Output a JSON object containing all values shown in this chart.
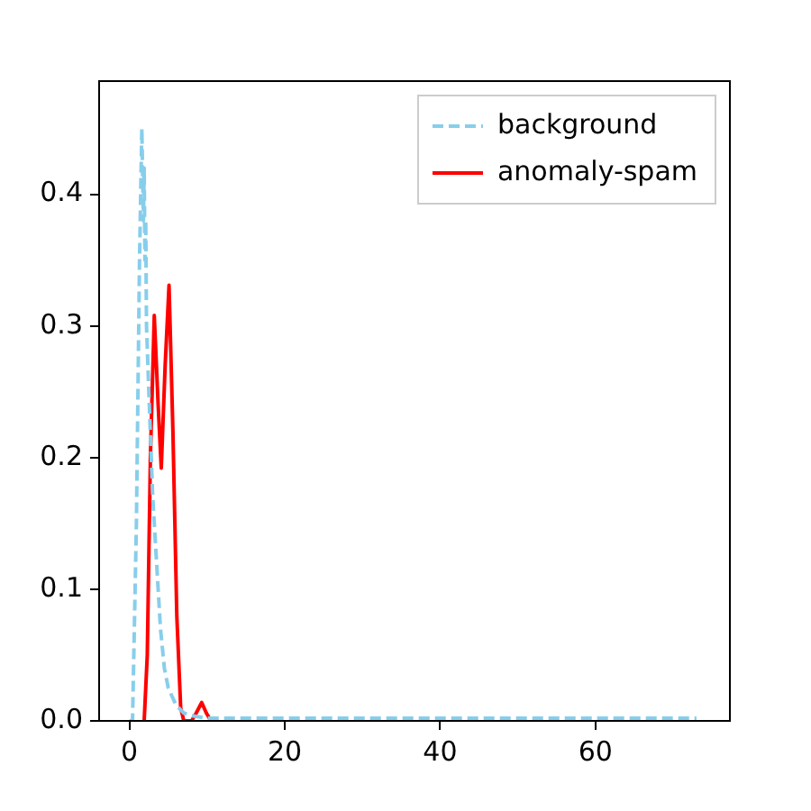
{
  "chart_data": {
    "type": "line",
    "xlim": [
      -3.9,
      77.3
    ],
    "ylim": [
      0,
      0.486
    ],
    "xticks": [
      0,
      20,
      40,
      60
    ],
    "yticks": [
      {
        "value": 0,
        "label": "0.0"
      },
      {
        "value": 0.1,
        "label": "0.1"
      },
      {
        "value": 0.2,
        "label": "0.2"
      },
      {
        "value": 0.3,
        "label": "0.3"
      },
      {
        "value": 0.4,
        "label": "0.4"
      }
    ],
    "grid": false,
    "legend": "top right",
    "marker": "none",
    "series": [
      {
        "name": "background",
        "color": "#87ceeb",
        "line_style": "dashed",
        "x": [
          0,
          0.4,
          0.9,
          1.3,
          1.6,
          1.8,
          1.9,
          2.0,
          2.1,
          2.2,
          2.5,
          3,
          3.5,
          4,
          4.5,
          5,
          6,
          7,
          8,
          10,
          20,
          40,
          60,
          73
        ],
        "values": [
          0,
          0,
          0.15,
          0.35,
          0.45,
          0.38,
          0.42,
          0.35,
          0.38,
          0.3,
          0.25,
          0.17,
          0.12,
          0.07,
          0.04,
          0.025,
          0.012,
          0.006,
          0.004,
          0.002,
          0.002,
          0.002,
          0.002,
          0.002
        ]
      },
      {
        "name": "anomaly-spam",
        "color": "#ff0000",
        "line_style": "solid",
        "x": [
          1.9,
          2.3,
          2.7,
          3.2,
          3.7,
          4.1,
          4.6,
          5.1,
          5.6,
          6.1,
          6.6,
          7,
          8,
          8.6,
          9.3,
          9.9,
          10.5
        ],
        "values": [
          0,
          0.05,
          0.2,
          0.308,
          0.24,
          0.192,
          0.27,
          0.331,
          0.22,
          0.08,
          0.01,
          0,
          0,
          0.006,
          0.014,
          0.006,
          0
        ]
      }
    ]
  }
}
